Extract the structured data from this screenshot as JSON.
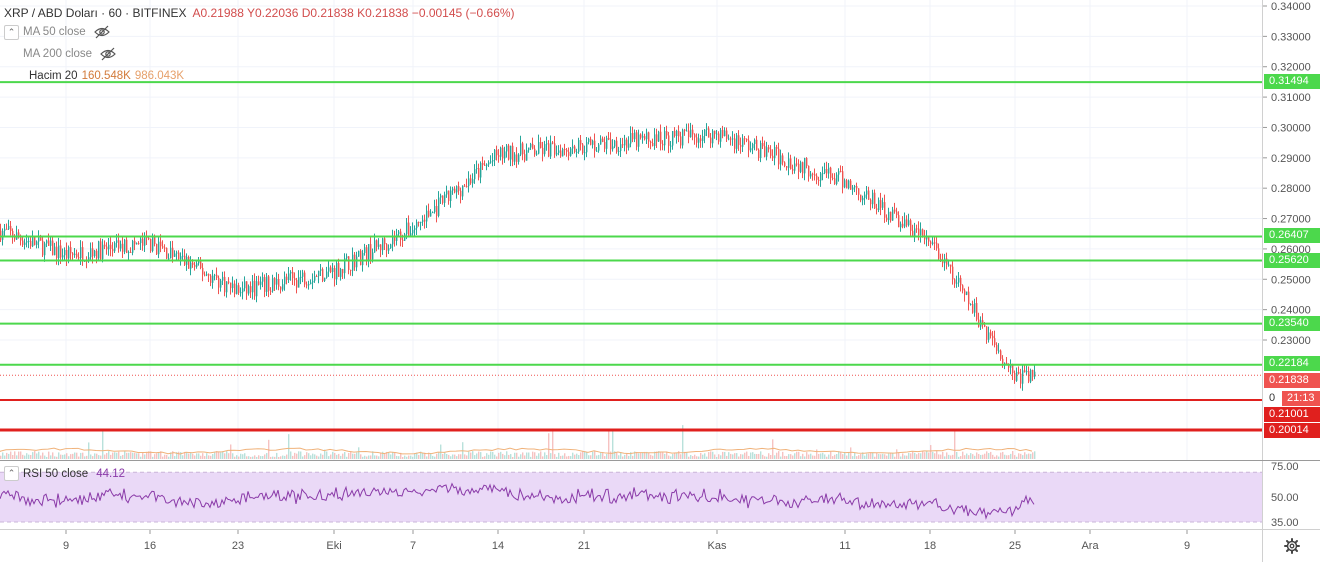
{
  "header": {
    "symbol": "XRP / ABD Doları · 60 · BITFINEX",
    "ohlc": "A0.21988  Y0.22036  D0.21838  K0.21838  −0.00145 (−0.66%)"
  },
  "indicators": {
    "ma50": "MA 50 close",
    "ma200": "MA 200 close",
    "volume_name": "Hacim 20",
    "volume_v1": "160.548K",
    "volume_v2": "986.043K"
  },
  "rsi": {
    "name": "RSI 50 close",
    "value": "44.12",
    "ticks": [
      "75.00",
      "50.00",
      "35.00"
    ]
  },
  "price_axis": {
    "ticks": [
      "0.34000",
      "0.33000",
      "0.32000",
      "0.31000",
      "0.30000",
      "0.29000",
      "0.28000",
      "0.27000",
      "0.26000",
      "0.25000",
      "0.24000",
      "0.23000"
    ]
  },
  "time_axis": [
    "9",
    "16",
    "23",
    "Eki",
    "7",
    "14",
    "21",
    "Kas",
    "11",
    "18",
    "25",
    "Ara",
    "9"
  ],
  "level_labels": {
    "l1": "0.31494",
    "l2": "0.26407",
    "l3": "0.25620",
    "l4": "0.23540",
    "l5": "0.22184",
    "price": "0.21838",
    "countdown": "21:13",
    "countdown_prefix": "0",
    "r1": "0.21001",
    "r2": "0.20014"
  },
  "colors": {
    "up": "#26a69a",
    "down": "#ef5350",
    "support_green": "#4cd84c",
    "resistance_red": "#e0201e",
    "rsi_line": "#8a3aa8",
    "rsi_band": "#ead9f7"
  },
  "chart_data": {
    "type": "line",
    "title": "XRP / ABD Doları · 60 · BITFINEX",
    "x": [
      "9",
      "16",
      "23",
      "Eki",
      "7",
      "14",
      "21",
      "Kas",
      "11",
      "18",
      "25"
    ],
    "series": [
      {
        "name": "XRP / ABD Doları",
        "values": [
          0.258,
          0.262,
          0.246,
          0.253,
          0.267,
          0.291,
          0.294,
          0.298,
          0.282,
          0.262,
          0.218
        ]
      }
    ],
    "ylim": [
      0.2,
      0.34
    ],
    "horizontal_levels": [
      0.31494,
      0.26407,
      0.2562,
      0.2354,
      0.22184,
      0.21001,
      0.20014
    ],
    "last_price": 0.21838,
    "rsi_last": 44.12,
    "grid": true
  }
}
